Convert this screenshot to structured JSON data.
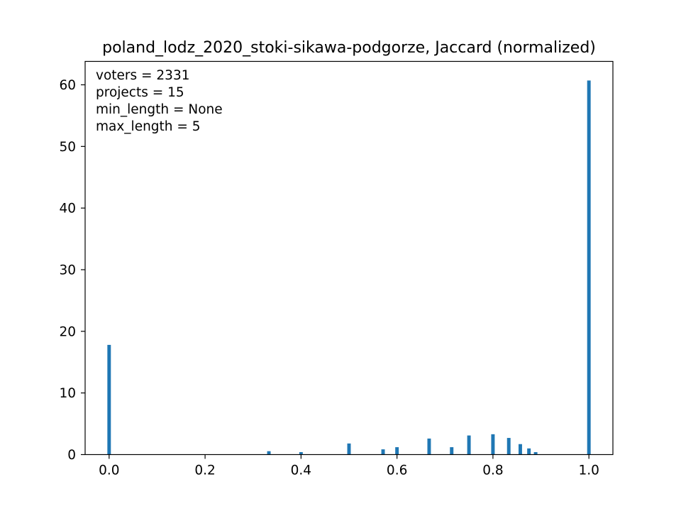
{
  "chart_data": {
    "type": "bar",
    "title": "poland_lodz_2020_stoki-sikawa-podgorze, Jaccard (normalized)",
    "xlabel": "",
    "ylabel": "",
    "xlim": [
      -0.05,
      1.05
    ],
    "ylim": [
      0,
      63.8
    ],
    "xticks": [
      0.0,
      0.2,
      0.4,
      0.6,
      0.8,
      1.0
    ],
    "xtick_labels": [
      "0.0",
      "0.2",
      "0.4",
      "0.6",
      "0.8",
      "1.0"
    ],
    "yticks": [
      0,
      10,
      20,
      30,
      40,
      50,
      60
    ],
    "ytick_labels": [
      "0",
      "10",
      "20",
      "30",
      "40",
      "50",
      "60"
    ],
    "grid": false,
    "bar_color": "#1f77b4",
    "bin_width": 0.01,
    "bars": [
      {
        "x": 0.0,
        "y": 17.8
      },
      {
        "x": 0.2,
        "y": 0.05
      },
      {
        "x": 0.25,
        "y": 0.05
      },
      {
        "x": 0.333,
        "y": 0.55
      },
      {
        "x": 0.4,
        "y": 0.4
      },
      {
        "x": 0.5,
        "y": 1.8
      },
      {
        "x": 0.571,
        "y": 0.85
      },
      {
        "x": 0.6,
        "y": 1.2
      },
      {
        "x": 0.667,
        "y": 2.6
      },
      {
        "x": 0.714,
        "y": 1.2
      },
      {
        "x": 0.75,
        "y": 3.1
      },
      {
        "x": 0.8,
        "y": 3.3
      },
      {
        "x": 0.833,
        "y": 2.7
      },
      {
        "x": 0.857,
        "y": 1.7
      },
      {
        "x": 0.875,
        "y": 1.0
      },
      {
        "x": 0.889,
        "y": 0.4
      },
      {
        "x": 1.0,
        "y": 60.7
      }
    ],
    "annotations": [
      "voters = 2331",
      "projects = 15",
      "min_length = None",
      "max_length = 5"
    ]
  }
}
